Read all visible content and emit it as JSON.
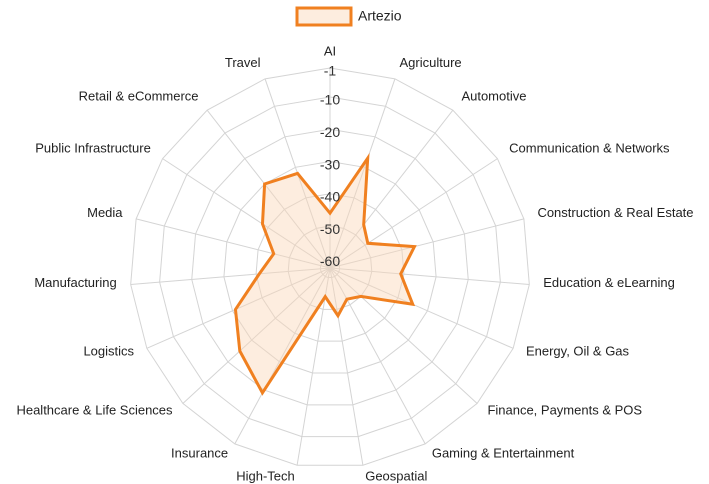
{
  "chart_data": {
    "type": "radar",
    "categories": [
      "AI",
      "Agriculture",
      "Automotive",
      "Communication & Networks",
      "Construction & Real Estate",
      "Education & eLearning",
      "Energy, Oil & Gas",
      "Finance, Payments & POS",
      "Gaming & Entertainment",
      "Geospatial",
      "High-Tech",
      "Insurance",
      "Healthcare & Life Sciences",
      "Logistics",
      "Manufacturing",
      "Media",
      "Public Infrastructure",
      "Retail & eCommerce",
      "Travel"
    ],
    "series": [
      {
        "name": "Artezio",
        "color": "#f08020",
        "fill": "rgba(250,215,185,0.45)",
        "values": [
          -46,
          -27,
          -46,
          -49,
          -36,
          -41,
          -35,
          -50,
          -52,
          -48,
          -54,
          -19,
          -25,
          -31,
          -41,
          -45,
          -38,
          -30,
          -32
        ]
      }
    ],
    "ylim": [
      -63,
      -1
    ],
    "yticks": [
      -60,
      -50,
      -40,
      -30,
      -20,
      -10,
      -1
    ],
    "grid": true,
    "legend": "top"
  }
}
